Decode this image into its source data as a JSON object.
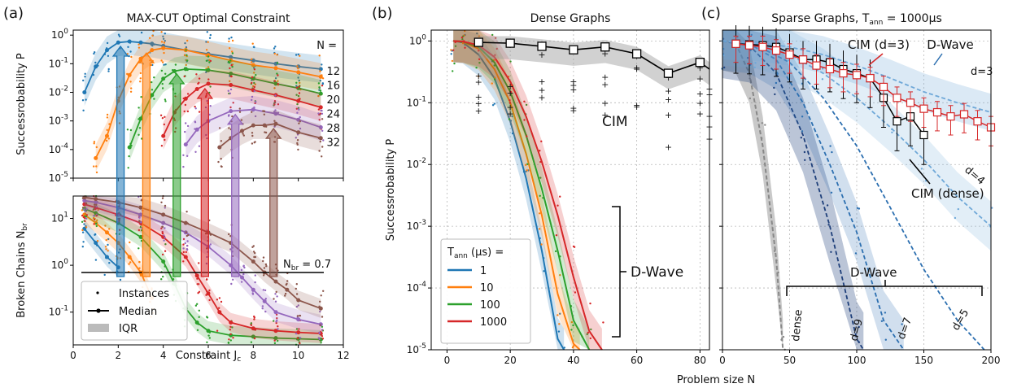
{
  "figure": {
    "panel_labels": [
      "(a)",
      "(b)",
      "(c)"
    ],
    "shared_xlabel": "Problem size N"
  },
  "colors": {
    "blue": "#1f77b4",
    "orange": "#ff7f0e",
    "green": "#2ca02c",
    "red": "#d62728",
    "purple": "#9467bd",
    "brown": "#8c564b",
    "gray": "#888888",
    "black": "#000000",
    "sparse_light": "#6fa8d8",
    "sparse_dark": "#1e3f7a",
    "sparse_mid": "#2c6fb0"
  },
  "chart_data": [
    {
      "id": "a_top",
      "type": "line",
      "title": "MAX-CUT Optimal Constraint",
      "ylabel": "Success Probability P",
      "xlabel": "",
      "ylog": true,
      "xlim": [
        0,
        12
      ],
      "ylim": [
        1e-05,
        1.5
      ],
      "yticks": [
        "10^-5",
        "10^-4",
        "10^-3",
        "10^-2",
        "10^-1",
        "10^0"
      ],
      "legend_title": "N =",
      "series": [
        {
          "name": "12",
          "color": "blue",
          "x": [
            0.5,
            1,
            1.5,
            2,
            2.5,
            3,
            3.5,
            4,
            5,
            6,
            7,
            8,
            9,
            10,
            11
          ],
          "y": [
            0.01,
            0.08,
            0.3,
            0.55,
            0.6,
            0.55,
            0.5,
            0.42,
            0.3,
            0.22,
            0.17,
            0.13,
            0.1,
            0.08,
            0.065
          ]
        },
        {
          "name": "16",
          "color": "orange",
          "x": [
            1,
            1.5,
            2,
            2.5,
            3,
            3.5,
            4,
            5,
            6,
            7,
            8,
            9,
            10,
            11
          ],
          "y": [
            5e-05,
            0.0003,
            0.005,
            0.04,
            0.15,
            0.3,
            0.35,
            0.3,
            0.2,
            0.13,
            0.09,
            0.07,
            0.05,
            0.035
          ]
        },
        {
          "name": "20",
          "color": "green",
          "x": [
            2.5,
            3,
            3.5,
            4,
            4.5,
            5,
            6,
            7,
            8,
            9,
            10,
            11
          ],
          "y": [
            0.00012,
            0.0012,
            0.008,
            0.03,
            0.055,
            0.065,
            0.06,
            0.045,
            0.03,
            0.02,
            0.014,
            0.009
          ]
        },
        {
          "name": "24",
          "color": "red",
          "x": [
            4,
            4.5,
            5,
            5.5,
            6,
            7,
            8,
            9,
            10,
            11
          ],
          "y": [
            0.0003,
            0.002,
            0.006,
            0.013,
            0.02,
            0.018,
            0.012,
            0.008,
            0.005,
            0.003
          ]
        },
        {
          "name": "28",
          "color": "purple",
          "x": [
            5,
            5.5,
            6,
            7,
            8,
            9,
            10,
            11
          ],
          "y": [
            0.00015,
            0.0005,
            0.001,
            0.0022,
            0.0025,
            0.0018,
            0.0011,
            0.0006
          ]
        },
        {
          "name": "32",
          "color": "brown",
          "x": [
            6.5,
            7,
            7.5,
            8,
            8.5,
            9,
            10,
            11
          ],
          "y": [
            0.00012,
            0.00025,
            0.00045,
            0.0007,
            0.0007,
            0.0008,
            0.0004,
            0.00025
          ]
        }
      ],
      "optimal_arrows": [
        {
          "series": "12",
          "x": 2.1
        },
        {
          "series": "16",
          "x": 3.25
        },
        {
          "series": "20",
          "x": 4.6
        },
        {
          "series": "24",
          "x": 5.85
        },
        {
          "series": "28",
          "x": 7.2
        },
        {
          "series": "32",
          "x": 8.9
        }
      ]
    },
    {
      "id": "a_bottom",
      "type": "line",
      "ylabel": "Broken Chains N_br",
      "xlabel": "Constraint J_c",
      "ylog": true,
      "xlim": [
        0,
        12
      ],
      "ylim": [
        0.02,
        30
      ],
      "xticks": [
        0,
        2,
        4,
        6,
        8,
        10,
        12
      ],
      "yticks": [
        "10^-1",
        "10^0",
        "10^1"
      ],
      "threshold": {
        "value": 0.7,
        "label": "N_br = 0.7"
      },
      "legend": [
        "Instances",
        "Median",
        "IQR"
      ],
      "series": [
        {
          "name": "12",
          "color": "blue",
          "x": [
            0.5,
            1,
            1.5,
            2
          ],
          "y": [
            6,
            3,
            1.5,
            0.9
          ]
        },
        {
          "name": "16",
          "color": "orange",
          "x": [
            0.5,
            1,
            1.5,
            2,
            2.5,
            3,
            3.5
          ],
          "y": [
            12,
            8,
            5,
            3,
            1.5,
            0.7,
            0.2
          ]
        },
        {
          "name": "20",
          "color": "green",
          "x": [
            0.5,
            1,
            2,
            3,
            4,
            4.5,
            5,
            5.5,
            6,
            7,
            8,
            9,
            10,
            11
          ],
          "y": [
            16,
            13,
            8,
            4,
            1.2,
            0.4,
            0.12,
            0.06,
            0.04,
            0.032,
            0.03,
            0.028,
            0.027,
            0.026
          ]
        },
        {
          "name": "24",
          "color": "red",
          "x": [
            0.5,
            1,
            2,
            3,
            4,
            5,
            5.5,
            6,
            6.5,
            7,
            8,
            9,
            10,
            11
          ],
          "y": [
            20,
            17,
            12,
            8,
            4,
            1.5,
            0.6,
            0.25,
            0.1,
            0.06,
            0.045,
            0.04,
            0.037,
            0.035
          ]
        },
        {
          "name": "28",
          "color": "purple",
          "x": [
            0.5,
            1,
            2,
            3,
            4,
            5,
            6,
            7,
            7.5,
            8,
            8.5,
            9,
            10,
            11
          ],
          "y": [
            24,
            22,
            17,
            12,
            8,
            5,
            2.5,
            1,
            0.55,
            0.3,
            0.17,
            0.1,
            0.07,
            0.055
          ]
        },
        {
          "name": "32",
          "color": "brown",
          "x": [
            0.5,
            1,
            2,
            3,
            4,
            5,
            6,
            7,
            8,
            8.5,
            9,
            9.5,
            10,
            11
          ],
          "y": [
            28,
            26,
            22,
            17,
            12,
            8,
            5,
            3,
            1.2,
            0.7,
            0.45,
            0.3,
            0.18,
            0.12
          ]
        }
      ]
    },
    {
      "id": "b",
      "type": "line",
      "title": "Dense Graphs",
      "ylabel": "Success Probability P",
      "xlabel": "",
      "ylog": true,
      "xlim": [
        -5,
        83
      ],
      "ylim": [
        1e-05,
        1.5
      ],
      "xticks": [
        0,
        20,
        40,
        60,
        80
      ],
      "yticks": [
        "10^-5",
        "10^-4",
        "10^-3",
        "10^-2",
        "10^-1",
        "10^0"
      ],
      "legend_title": "T_ann (μs) =",
      "series": [
        {
          "name": "1",
          "color": "blue",
          "x": [
            2,
            5,
            10,
            15,
            20,
            25,
            30,
            35,
            37
          ],
          "y": [
            1,
            0.95,
            0.6,
            0.25,
            0.05,
            0.006,
            0.0004,
            1.5e-05,
            1e-05
          ]
        },
        {
          "name": "10",
          "color": "orange",
          "x": [
            2,
            5,
            10,
            15,
            20,
            25,
            30,
            35,
            40,
            42
          ],
          "y": [
            1,
            0.97,
            0.75,
            0.35,
            0.1,
            0.015,
            0.0015,
            8e-05,
            1.25e-05,
            1e-05
          ]
        },
        {
          "name": "100",
          "color": "green",
          "x": [
            2,
            5,
            10,
            15,
            20,
            25,
            30,
            35,
            40,
            45
          ],
          "y": [
            1,
            0.98,
            0.8,
            0.45,
            0.15,
            0.03,
            0.004,
            0.0004,
            3e-05,
            1e-05
          ]
        },
        {
          "name": "1000",
          "color": "red",
          "x": [
            2,
            5,
            10,
            15,
            20,
            25,
            30,
            35,
            40,
            45,
            49
          ],
          "y": [
            1,
            0.98,
            0.85,
            0.55,
            0.22,
            0.06,
            0.011,
            0.0015,
            0.00015,
            2e-05,
            1e-05
          ]
        },
        {
          "name": "CIM",
          "color": "black",
          "x": [
            10,
            20,
            30,
            40,
            50,
            60,
            70,
            80,
            83
          ],
          "y": [
            0.95,
            0.92,
            0.82,
            0.72,
            0.8,
            0.62,
            0.3,
            0.45,
            0.35
          ]
        }
      ],
      "annotations": [
        "CIM",
        "D-Wave"
      ]
    },
    {
      "id": "c",
      "type": "line",
      "title": "Sparse Graphs, T_ann = 1000μs",
      "ylabel": "",
      "xlabel": "",
      "ylog": true,
      "xlim": [
        0,
        200
      ],
      "ylim": [
        1e-05,
        1.5
      ],
      "xticks": [
        0,
        50,
        100,
        150,
        200
      ],
      "series": [
        {
          "name": "dense",
          "color": "gray",
          "x": [
            0,
            10,
            20,
            30,
            40,
            45
          ],
          "y": [
            1,
            0.9,
            0.3,
            0.02,
            0.0003,
            1e-05
          ]
        },
        {
          "name": "d=9",
          "color": "sparse_dark",
          "x": [
            0,
            20,
            40,
            60,
            80,
            100,
            105
          ],
          "y": [
            1,
            0.85,
            0.3,
            0.03,
            0.001,
            1.5e-05,
            1e-05
          ]
        },
        {
          "name": "d=7",
          "color": "sparse_mid",
          "x": [
            0,
            20,
            40,
            60,
            80,
            100,
            120,
            135
          ],
          "y": [
            1,
            0.9,
            0.5,
            0.1,
            0.01,
            0.0008,
            3e-05,
            1e-05
          ]
        },
        {
          "name": "d=5",
          "color": "sparse_mid",
          "x": [
            0,
            25,
            50,
            75,
            100,
            125,
            150,
            175,
            195
          ],
          "y": [
            1,
            0.85,
            0.45,
            0.12,
            0.02,
            0.002,
            0.0002,
            3e-05,
            1e-05
          ]
        },
        {
          "name": "d=4",
          "color": "sparse_light",
          "x": [
            0,
            25,
            50,
            75,
            100,
            125,
            150,
            175,
            200
          ],
          "y": [
            1,
            0.9,
            0.6,
            0.3,
            0.12,
            0.04,
            0.012,
            0.003,
            0.001
          ]
        },
        {
          "name": "d=3",
          "color": "sparse_light",
          "x": [
            0,
            25,
            50,
            75,
            100,
            125,
            150,
            175,
            200
          ],
          "y": [
            1,
            0.95,
            0.8,
            0.6,
            0.4,
            0.25,
            0.15,
            0.1,
            0.07
          ]
        },
        {
          "name": "CIM (d=3)",
          "color": "red",
          "x": [
            10,
            20,
            30,
            40,
            50,
            60,
            70,
            80,
            90,
            100,
            110,
            120,
            130,
            140,
            150,
            160,
            170,
            180,
            190,
            200
          ],
          "y": [
            0.9,
            0.85,
            0.8,
            0.7,
            0.6,
            0.5,
            0.4,
            0.35,
            0.3,
            0.28,
            0.25,
            0.18,
            0.12,
            0.1,
            0.08,
            0.07,
            0.06,
            0.065,
            0.05,
            0.04
          ]
        },
        {
          "name": "CIM (dense)",
          "color": "black",
          "x": [
            10,
            20,
            30,
            40,
            50,
            60,
            70,
            80,
            90,
            100,
            110,
            120,
            130,
            140,
            150
          ],
          "y": [
            0.9,
            0.88,
            0.85,
            0.8,
            0.65,
            0.5,
            0.5,
            0.45,
            0.35,
            0.3,
            0.25,
            0.12,
            0.05,
            0.06,
            0.03
          ]
        }
      ],
      "annotations": [
        "D-Wave",
        "CIM (d=3)",
        "CIM (dense)",
        "d=3",
        "d=4",
        "d=5",
        "d=7",
        "d=9",
        "dense"
      ]
    }
  ]
}
